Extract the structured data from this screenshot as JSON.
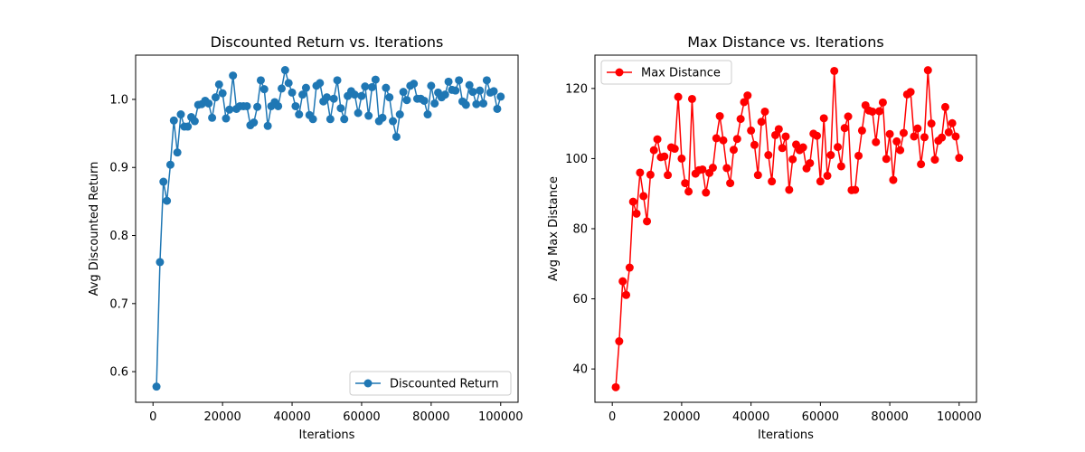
{
  "chart_data": [
    {
      "type": "line",
      "title": "Discounted Return vs. Iterations",
      "xlabel": "Iterations",
      "ylabel": "Avg Discounted Return",
      "xlim": [
        -5000,
        105000
      ],
      "ylim": [
        0.555,
        1.065
      ],
      "xticks": [
        0,
        20000,
        40000,
        60000,
        80000,
        100000
      ],
      "xtick_labels": [
        "0",
        "20000",
        "40000",
        "60000",
        "80000",
        "100000"
      ],
      "yticks": [
        0.6,
        0.7,
        0.8,
        0.9,
        1.0
      ],
      "ytick_labels": [
        "0.6",
        "0.7",
        "0.8",
        "0.9",
        "1.0"
      ],
      "grid": false,
      "legend_position": "lower-right",
      "series": [
        {
          "name": "Discounted Return",
          "color": "#1f77b4",
          "marker": "circle",
          "x": [
            1000,
            2000,
            3000,
            4000,
            5000,
            6000,
            7000,
            8000,
            9000,
            10000,
            11000,
            12000,
            13000,
            14000,
            15000,
            16000,
            17000,
            18000,
            19000,
            20000,
            21000,
            22000,
            23000,
            24000,
            25000,
            26000,
            27000,
            28000,
            29000,
            30000,
            31000,
            32000,
            33000,
            34000,
            35000,
            36000,
            37000,
            38000,
            39000,
            40000,
            41000,
            42000,
            43000,
            44000,
            45000,
            46000,
            47000,
            48000,
            49000,
            50000,
            51000,
            52000,
            53000,
            54000,
            55000,
            56000,
            57000,
            58000,
            59000,
            60000,
            61000,
            62000,
            63000,
            64000,
            65000,
            66000,
            67000,
            68000,
            69000,
            70000,
            71000,
            72000,
            73000,
            74000,
            75000,
            76000,
            77000,
            78000,
            79000,
            80000,
            81000,
            82000,
            83000,
            84000,
            85000,
            86000,
            87000,
            88000,
            89000,
            90000,
            91000,
            92000,
            93000,
            94000,
            95000,
            96000,
            97000,
            98000,
            99000,
            100000
          ],
          "y": [
            0.578,
            0.761,
            0.879,
            0.851,
            0.904,
            0.969,
            0.922,
            0.978,
            0.96,
            0.96,
            0.974,
            0.968,
            0.992,
            0.993,
            0.998,
            0.994,
            0.973,
            1.003,
            1.022,
            1.009,
            0.972,
            0.985,
            1.035,
            0.986,
            0.99,
            0.99,
            0.99,
            0.962,
            0.966,
            0.989,
            1.028,
            1.015,
            0.961,
            0.99,
            0.996,
            0.99,
            1.016,
            1.043,
            1.024,
            1.01,
            0.99,
            0.978,
            1.007,
            1.017,
            0.977,
            0.971,
            1.02,
            1.024,
            0.997,
            1.003,
            0.971,
            1.001,
            1.028,
            0.987,
            0.971,
            1.005,
            1.012,
            1.007,
            0.98,
            1.005,
            1.019,
            0.976,
            1.018,
            1.029,
            0.968,
            0.973,
            1.017,
            1.003,
            0.968,
            0.945,
            0.978,
            1.011,
            0.999,
            1.02,
            1.023,
            1.001,
            1.001,
            0.998,
            0.978,
            1.02,
            0.994,
            1.01,
            1.003,
            1.007,
            1.026,
            1.014,
            1.013,
            1.028,
            0.997,
            0.992,
            1.021,
            1.011,
            0.993,
            1.013,
            0.994,
            1.028,
            1.01,
            1.012,
            0.986,
            1.004
          ]
        }
      ]
    },
    {
      "type": "line",
      "title": "Max Distance vs. Iterations",
      "xlabel": "Iterations",
      "ylabel": "Avg Max Distance",
      "xlim": [
        -5000,
        105000
      ],
      "ylim": [
        30.5,
        129.5
      ],
      "xticks": [
        0,
        20000,
        40000,
        60000,
        80000,
        100000
      ],
      "xtick_labels": [
        "0",
        "20000",
        "40000",
        "60000",
        "80000",
        "100000"
      ],
      "yticks": [
        40,
        60,
        80,
        100,
        120
      ],
      "ytick_labels": [
        "40",
        "60",
        "80",
        "100",
        "120"
      ],
      "grid": false,
      "legend_position": "upper-left",
      "series": [
        {
          "name": "Max Distance",
          "color": "#ff0000",
          "marker": "circle",
          "x": [
            1000,
            2000,
            3000,
            4000,
            5000,
            6000,
            7000,
            8000,
            9000,
            10000,
            11000,
            12000,
            13000,
            14000,
            15000,
            16000,
            17000,
            18000,
            19000,
            20000,
            21000,
            22000,
            23000,
            24000,
            25000,
            26000,
            27000,
            28000,
            29000,
            30000,
            31000,
            32000,
            33000,
            34000,
            35000,
            36000,
            37000,
            38000,
            39000,
            40000,
            41000,
            42000,
            43000,
            44000,
            45000,
            46000,
            47000,
            48000,
            49000,
            50000,
            51000,
            52000,
            53000,
            54000,
            55000,
            56000,
            57000,
            58000,
            59000,
            60000,
            61000,
            62000,
            63000,
            64000,
            65000,
            66000,
            67000,
            68000,
            69000,
            70000,
            71000,
            72000,
            73000,
            74000,
            75000,
            76000,
            77000,
            78000,
            79000,
            80000,
            81000,
            82000,
            83000,
            84000,
            85000,
            86000,
            87000,
            88000,
            89000,
            90000,
            91000,
            92000,
            93000,
            94000,
            95000,
            96000,
            97000,
            98000,
            99000,
            100000
          ],
          "y": [
            34.8,
            47.9,
            65.0,
            61.1,
            68.9,
            87.7,
            84.3,
            96.0,
            89.3,
            82.1,
            95.4,
            102.4,
            105.5,
            100.4,
            100.6,
            95.3,
            103.2,
            102.8,
            117.6,
            100.0,
            93.0,
            90.6,
            117.0,
            95.7,
            96.7,
            96.9,
            90.3,
            95.9,
            97.4,
            105.8,
            112.1,
            105.2,
            97.3,
            93.0,
            102.5,
            105.6,
            111.3,
            116.1,
            118.0,
            108.0,
            103.9,
            95.3,
            110.5,
            113.4,
            101.0,
            93.5,
            106.7,
            108.4,
            103.0,
            106.3,
            91.1,
            99.8,
            104.0,
            102.4,
            103.2,
            97.2,
            98.7,
            107.1,
            106.5,
            93.5,
            111.5,
            95.1,
            101.0,
            125.0,
            103.3,
            97.8,
            108.7,
            112.0,
            91.0,
            91.1,
            100.8,
            108.0,
            115.2,
            113.7,
            113.4,
            104.7,
            113.5,
            116.0,
            99.9,
            107.0,
            93.9,
            104.9,
            102.4,
            107.3,
            118.3,
            119.0,
            106.3,
            108.6,
            98.4,
            106.1,
            125.2,
            110.0,
            99.7,
            105.1,
            106.0,
            114.7,
            107.5,
            110.1,
            106.3,
            100.2
          ]
        }
      ]
    }
  ]
}
